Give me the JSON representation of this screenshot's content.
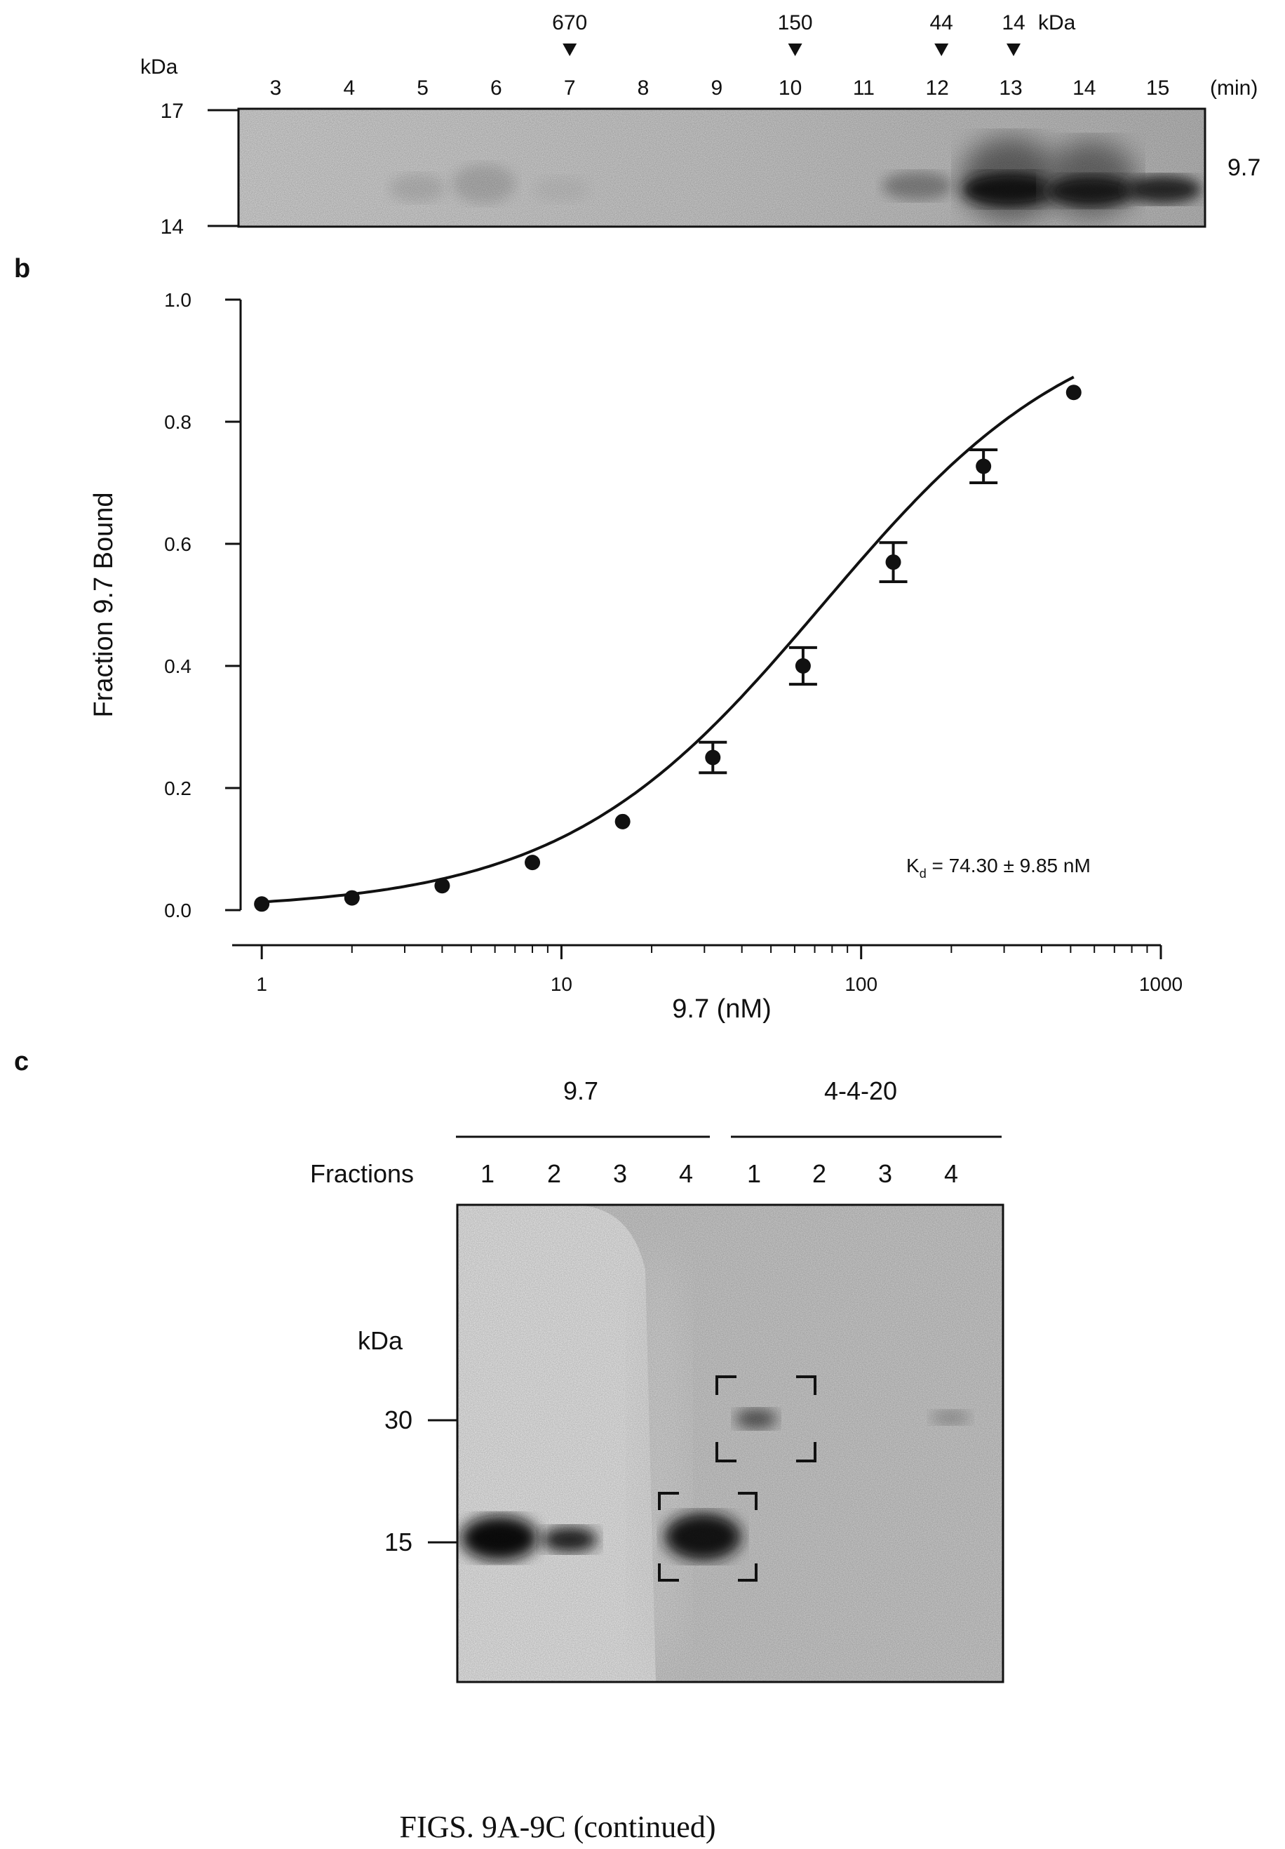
{
  "panel_a": {
    "kda_label": "kDa",
    "min_label": "(min)",
    "markers": [
      {
        "value": "670",
        "time": 7
      },
      {
        "value": "150",
        "time": 10
      },
      {
        "value": "44",
        "time": 12
      },
      {
        "value": "14",
        "time": 13
      }
    ],
    "markers_unit": "kDa",
    "time_labels": [
      "3",
      "4",
      "5",
      "6",
      "7",
      "8",
      "9",
      "10",
      "11",
      "12",
      "13",
      "14",
      "15"
    ],
    "mw_labels": [
      "17",
      "14"
    ],
    "protein_label": "9.7"
  },
  "panel_b": {
    "label": "b",
    "annotation": "K",
    "annotation_sub": "d",
    "annotation_rest": " = 74.30 ± 9.85 nM",
    "chart_data": {
      "type": "scatter",
      "xscale": "log",
      "xlabel": "9.7 (nM)",
      "ylabel": "Fraction 9.7 Bound",
      "xlim": [
        0.85,
        1000
      ],
      "ylim": [
        0.0,
        1.0
      ],
      "xticks": [
        "1",
        "10",
        "100",
        "1000"
      ],
      "yticks": [
        "0.0",
        "0.2",
        "0.4",
        "0.6",
        "0.8",
        "1.0"
      ],
      "points": [
        {
          "x": 1,
          "y": 0.01
        },
        {
          "x": 2,
          "y": 0.02
        },
        {
          "x": 4,
          "y": 0.04
        },
        {
          "x": 8,
          "y": 0.078
        },
        {
          "x": 16,
          "y": 0.145
        },
        {
          "x": 32,
          "y": 0.25,
          "err": 0.025
        },
        {
          "x": 64,
          "y": 0.4,
          "err": 0.03
        },
        {
          "x": 128,
          "y": 0.57,
          "err": 0.032
        },
        {
          "x": 256,
          "y": 0.727,
          "err": 0.027
        },
        {
          "x": 512,
          "y": 0.848
        }
      ],
      "fit": {
        "model": "hill",
        "kd": 74.3,
        "n": 1.0,
        "bmax": 1.0
      }
    }
  },
  "panel_c": {
    "label": "c",
    "group1": "9.7",
    "group2": "4-4-20",
    "fractions_label": "Fractions",
    "lanes1": [
      "1",
      "2",
      "3",
      "4"
    ],
    "lanes2": [
      "1",
      "2",
      "3",
      "4"
    ],
    "kda_label": "kDa",
    "mw_labels": [
      "30",
      "15"
    ]
  },
  "caption": "FIGS. 9A-9C (continued)"
}
